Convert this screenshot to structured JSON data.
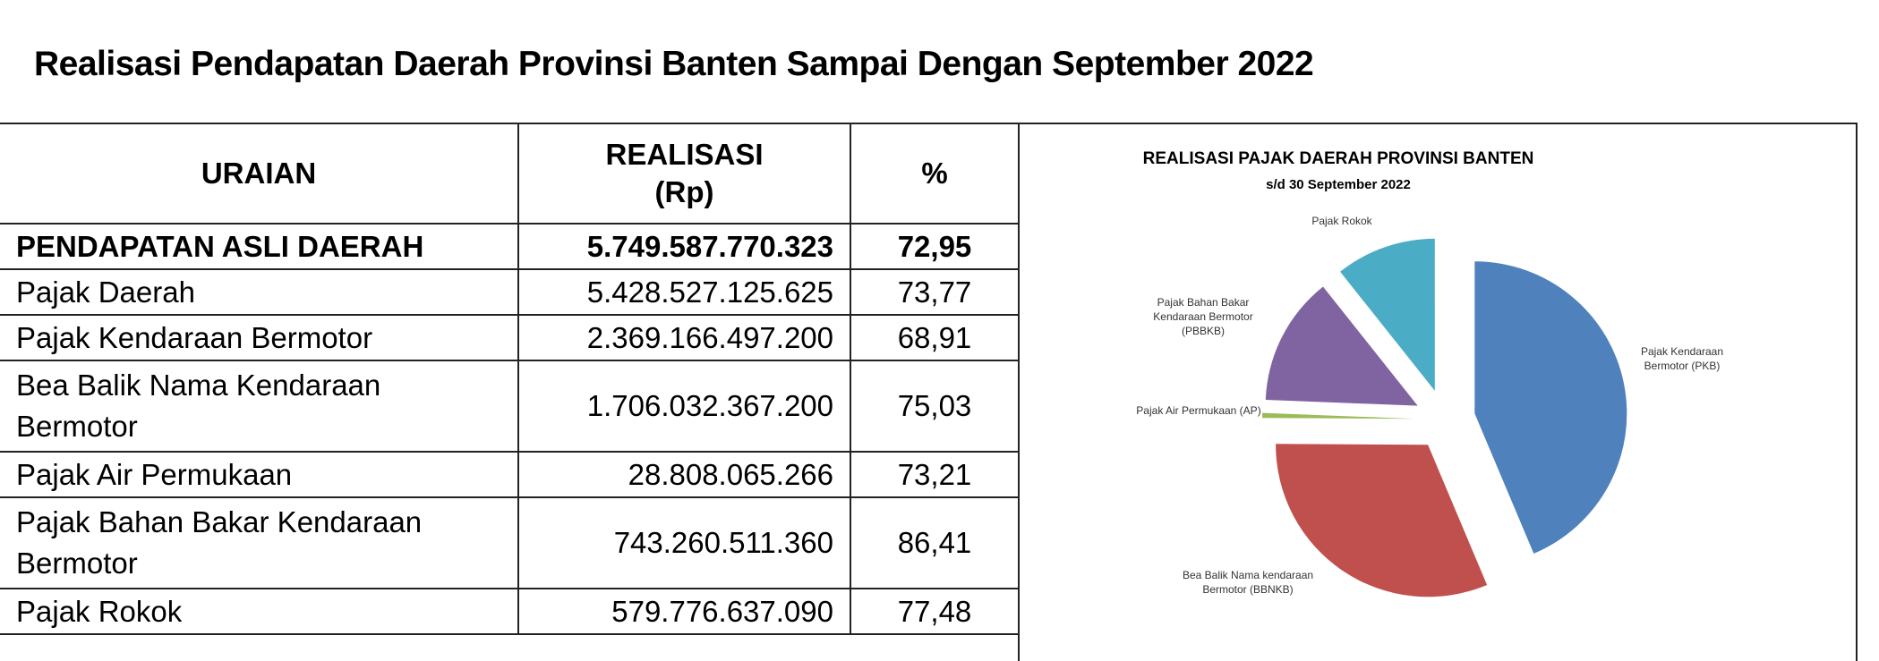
{
  "page_title": "Realisasi Pendapatan Daerah Provinsi Banten Sampai Dengan September 2022",
  "table": {
    "headers": {
      "uraian": "URAIAN",
      "realisasi_1": "REALISASI",
      "realisasi_2": "(Rp)",
      "pct": "%"
    },
    "rows": [
      {
        "uraian": "PENDAPATAN ASLI DAERAH",
        "realisasi": "5.749.587.770.323",
        "pct": "72,95"
      },
      {
        "uraian": "Pajak Daerah",
        "realisasi": "5.428.527.125.625",
        "pct": "73,77"
      },
      {
        "uraian": "Pajak Kendaraan Bermotor",
        "realisasi": "2.369.166.497.200",
        "pct": "68,91"
      },
      {
        "uraian": "Bea Balik Nama Kendaraan Bermotor",
        "realisasi": "1.706.032.367.200",
        "pct": "75,03"
      },
      {
        "uraian": "Pajak Air Permukaan",
        "realisasi": "28.808.065.266",
        "pct": "73,21"
      },
      {
        "uraian": "Pajak Bahan Bakar Kendaraan Bermotor",
        "realisasi": "743.260.511.360",
        "pct": "86,41"
      },
      {
        "uraian": "Pajak Rokok",
        "realisasi": "579.776.637.090",
        "pct": "77,48"
      }
    ]
  },
  "chart_data": {
    "type": "pie",
    "title": "REALISASI PAJAK DAERAH PROVINSI BANTEN",
    "subtitle": "s/d 30 September 2022",
    "exploded": true,
    "legend": "none",
    "slices": [
      {
        "label": "Pajak Kendaraan Bermotor (PKB)",
        "label_lines": [
          "Pajak Kendaraan",
          "Bermotor (PKB)"
        ],
        "value": 2369166497200,
        "color": "#4f81bd"
      },
      {
        "label": "Bea Balik Nama kendaraan Bermotor (BBNKB)",
        "label_lines": [
          "Bea Balik Nama kendaraan",
          "Bermotor (BBNKB)"
        ],
        "value": 1706032367200,
        "color": "#c0504d"
      },
      {
        "label": "Pajak Air Permukaan (AP)",
        "label_lines": [
          "Pajak Air Permukaan (AP)"
        ],
        "value": 28808065266,
        "color": "#9bbb59"
      },
      {
        "label": "Pajak Bahan Bakar Kendaraan Bermotor (PBBKB)",
        "label_lines": [
          "Pajak Bahan Bakar",
          "Kendaraan Bermotor",
          "(PBBKB)"
        ],
        "value": 743260511360,
        "color": "#8064a2"
      },
      {
        "label": "Pajak Rokok",
        "label_lines": [
          "Pajak Rokok"
        ],
        "value": 579776637090,
        "color": "#4bacc6"
      }
    ]
  }
}
